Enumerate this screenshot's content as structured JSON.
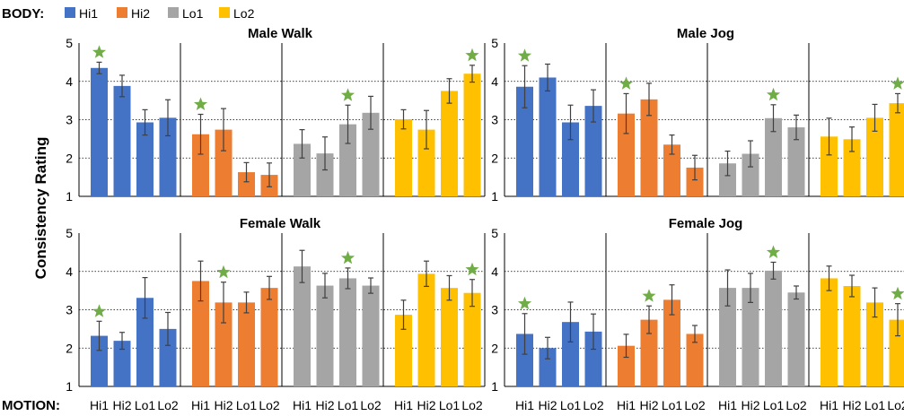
{
  "legend": {
    "label": "BODY:",
    "entries": [
      {
        "name": "Hi1",
        "color": "#4472C4"
      },
      {
        "name": "Hi2",
        "color": "#ED7D31"
      },
      {
        "name": "Lo1",
        "color": "#A5A5A5"
      },
      {
        "name": "Lo2",
        "color": "#FFC000"
      }
    ]
  },
  "motion_label": "MOTION:",
  "ylabel": "Consistency Rating",
  "star_color": "#70AD47",
  "chart_data": {
    "type": "bar",
    "ylim": [
      1,
      5
    ],
    "yticks": [
      1,
      2,
      3,
      4,
      5
    ],
    "grid": "dotted at 2, 3, 4",
    "categories": [
      "Hi1",
      "Hi2",
      "Lo1",
      "Lo2"
    ],
    "body_groups": [
      "Hi1",
      "Hi2",
      "Lo1",
      "Lo2"
    ],
    "panels": [
      {
        "title": "Male Walk",
        "groups": [
          {
            "body": "Hi1",
            "values": [
              4.35,
              3.88,
              2.93,
              3.05
            ],
            "errors": [
              0.15,
              0.28,
              0.33,
              0.47
            ],
            "star_index": 0
          },
          {
            "body": "Hi2",
            "values": [
              2.62,
              2.74,
              1.63,
              1.56
            ],
            "errors": [
              0.52,
              0.55,
              0.25,
              0.31
            ],
            "star_index": 0
          },
          {
            "body": "Lo1",
            "values": [
              2.37,
              2.12,
              2.88,
              3.18
            ],
            "errors": [
              0.37,
              0.43,
              0.5,
              0.43
            ],
            "star_index": 2
          },
          {
            "body": "Lo2",
            "values": [
              3.01,
              2.74,
              3.75,
              4.2
            ],
            "errors": [
              0.25,
              0.5,
              0.32,
              0.22
            ],
            "star_index": 3
          }
        ]
      },
      {
        "title": "Male Jog",
        "groups": [
          {
            "body": "Hi1",
            "values": [
              3.86,
              4.1,
              2.93,
              3.36
            ],
            "errors": [
              0.55,
              0.35,
              0.45,
              0.42
            ],
            "star_index": 0
          },
          {
            "body": "Hi2",
            "values": [
              3.16,
              3.53,
              2.35,
              1.75
            ],
            "errors": [
              0.52,
              0.42,
              0.25,
              0.32
            ],
            "star_index": 0
          },
          {
            "body": "Lo1",
            "values": [
              1.86,
              2.11,
              3.04,
              2.8
            ],
            "errors": [
              0.32,
              0.34,
              0.35,
              0.32
            ],
            "star_index": 2
          },
          {
            "body": "Lo2",
            "values": [
              2.56,
              2.49,
              3.05,
              3.43
            ],
            "errors": [
              0.48,
              0.32,
              0.35,
              0.25
            ],
            "star_index": 3
          }
        ]
      },
      {
        "title": "Female Walk",
        "groups": [
          {
            "body": "Hi1",
            "values": [
              2.32,
              2.19,
              3.31,
              2.5
            ],
            "errors": [
              0.38,
              0.22,
              0.53,
              0.43
            ],
            "star_index": 0
          },
          {
            "body": "Hi2",
            "values": [
              3.75,
              3.19,
              3.19,
              3.57
            ],
            "errors": [
              0.52,
              0.53,
              0.27,
              0.3
            ],
            "star_index": 1
          },
          {
            "body": "Lo1",
            "values": [
              4.13,
              3.63,
              3.82,
              3.63
            ],
            "errors": [
              0.42,
              0.32,
              0.27,
              0.2
            ],
            "star_index": 2
          },
          {
            "body": "Lo2",
            "values": [
              2.87,
              3.94,
              3.57,
              3.44
            ],
            "errors": [
              0.38,
              0.33,
              0.32,
              0.35
            ],
            "star_index": 3
          }
        ]
      },
      {
        "title": "Female Jog",
        "groups": [
          {
            "body": "Hi1",
            "values": [
              2.37,
              2.0,
              2.68,
              2.43
            ],
            "errors": [
              0.53,
              0.28,
              0.52,
              0.46
            ],
            "star_index": 0
          },
          {
            "body": "Hi2",
            "values": [
              2.06,
              2.74,
              3.26,
              2.37
            ],
            "errors": [
              0.3,
              0.36,
              0.39,
              0.22
            ],
            "star_index": 1
          },
          {
            "body": "Lo1",
            "values": [
              3.57,
              3.57,
              4.02,
              3.45
            ],
            "errors": [
              0.47,
              0.38,
              0.22,
              0.17
            ],
            "star_index": 2
          },
          {
            "body": "Lo2",
            "values": [
              3.82,
              3.62,
              3.19,
              2.74
            ],
            "errors": [
              0.32,
              0.28,
              0.38,
              0.42
            ],
            "star_index": 3
          }
        ]
      }
    ]
  }
}
